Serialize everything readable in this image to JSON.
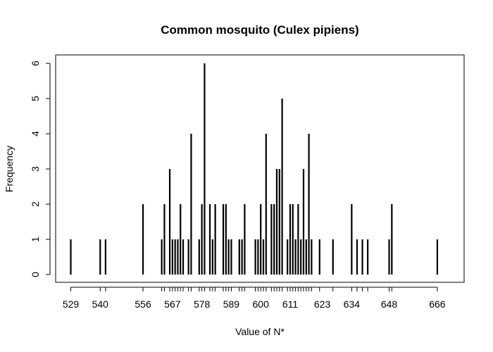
{
  "chart_data": {
    "type": "bar",
    "title": "Common mosquito (Culex pipiens)",
    "xlabel": "Value of N*",
    "ylabel": "Frequency",
    "xlim": [
      524,
      668
    ],
    "ylim": [
      0,
      6
    ],
    "yticks": [
      0,
      1,
      2,
      3,
      4,
      5,
      6
    ],
    "xtick_labels": [
      529,
      540,
      556,
      567,
      578,
      589,
      600,
      611,
      623,
      634,
      648,
      666
    ],
    "x": [
      529,
      540,
      542,
      556,
      563,
      564,
      566,
      567,
      568,
      569,
      570,
      571,
      573,
      574,
      577,
      578,
      579,
      581,
      582,
      583,
      586,
      587,
      588,
      589,
      592,
      593,
      594,
      598,
      599,
      600,
      601,
      602,
      604,
      605,
      606,
      607,
      608,
      610,
      611,
      612,
      613,
      614,
      615,
      616,
      617,
      618,
      619,
      622,
      627,
      634,
      636,
      638,
      640,
      648,
      649,
      666
    ],
    "values": [
      1,
      1,
      1,
      2,
      1,
      2,
      3,
      1,
      1,
      1,
      2,
      1,
      1,
      4,
      1,
      2,
      6,
      2,
      1,
      2,
      2,
      2,
      1,
      1,
      1,
      1,
      2,
      1,
      1,
      2,
      1,
      4,
      2,
      2,
      3,
      3,
      5,
      1,
      2,
      2,
      1,
      2,
      1,
      3,
      1,
      4,
      1,
      1,
      1,
      2,
      1,
      1,
      1,
      1,
      2,
      1
    ],
    "grid": false,
    "legend": "none",
    "bar_color": "#000000"
  }
}
